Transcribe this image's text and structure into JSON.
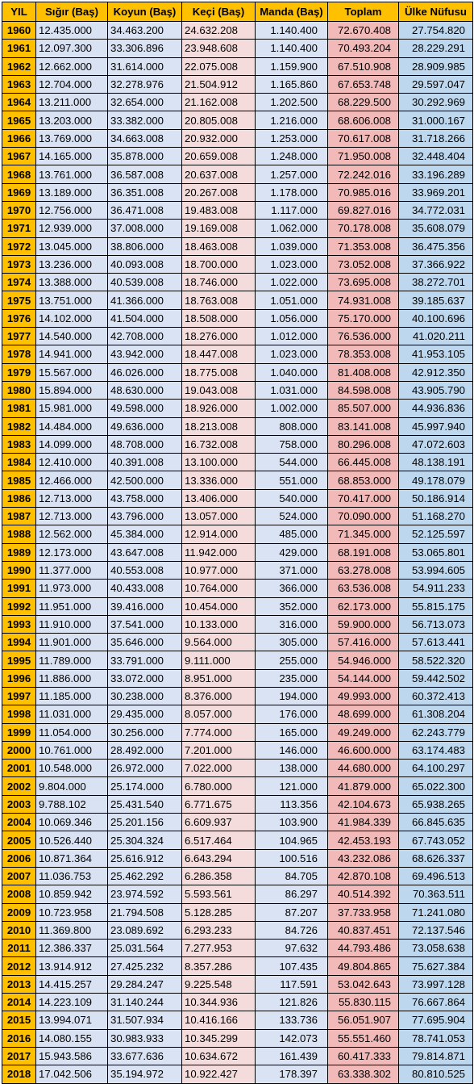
{
  "headers": [
    "YIL",
    "Sığır (Baş)",
    "Koyun (Baş)",
    "Keçi (Baş)",
    "Manda (Baş)",
    "Toplam",
    "Ülke Nüfusu"
  ],
  "rows": [
    [
      "1960",
      "12.435.000",
      "34.463.200",
      "24.632.208",
      "1.140.400",
      "72.670.408",
      "27.754.820"
    ],
    [
      "1961",
      "12.097.300",
      "33.306.896",
      "23.948.608",
      "1.140.400",
      "70.493.204",
      "28.229.291"
    ],
    [
      "1962",
      "12.662.000",
      "31.614.000",
      "22.075.008",
      "1.159.900",
      "67.510.908",
      "28.909.985"
    ],
    [
      "1963",
      "12.704.000",
      "32.278.976",
      "21.504.912",
      "1.165.860",
      "67.653.748",
      "29.597.047"
    ],
    [
      "1964",
      "13.211.000",
      "32.654.000",
      "21.162.008",
      "1.202.500",
      "68.229.500",
      "30.292.969"
    ],
    [
      "1965",
      "13.203.000",
      "33.382.000",
      "20.805.008",
      "1.216.000",
      "68.606.008",
      "31.000.167"
    ],
    [
      "1966",
      "13.769.000",
      "34.663.008",
      "20.932.000",
      "1.253.000",
      "70.617.008",
      "31.718.266"
    ],
    [
      "1967",
      "14.165.000",
      "35.878.000",
      "20.659.008",
      "1.248.000",
      "71.950.008",
      "32.448.404"
    ],
    [
      "1968",
      "13.761.000",
      "36.587.008",
      "20.637.008",
      "1.257.000",
      "72.242.016",
      "33.196.289"
    ],
    [
      "1969",
      "13.189.000",
      "36.351.008",
      "20.267.008",
      "1.178.000",
      "70.985.016",
      "33.969.201"
    ],
    [
      "1970",
      "12.756.000",
      "36.471.008",
      "19.483.008",
      "1.117.000",
      "69.827.016",
      "34.772.031"
    ],
    [
      "1971",
      "12.939.000",
      "37.008.000",
      "19.169.008",
      "1.062.000",
      "70.178.008",
      "35.608.079"
    ],
    [
      "1972",
      "13.045.000",
      "38.806.000",
      "18.463.008",
      "1.039.000",
      "71.353.008",
      "36.475.356"
    ],
    [
      "1973",
      "13.236.000",
      "40.093.008",
      "18.700.000",
      "1.023.000",
      "73.052.008",
      "37.366.922"
    ],
    [
      "1974",
      "13.388.000",
      "40.539.008",
      "18.746.000",
      "1.022.000",
      "73.695.008",
      "38.272.701"
    ],
    [
      "1975",
      "13.751.000",
      "41.366.000",
      "18.763.008",
      "1.051.000",
      "74.931.008",
      "39.185.637"
    ],
    [
      "1976",
      "14.102.000",
      "41.504.000",
      "18.508.000",
      "1.056.000",
      "75.170.000",
      "40.100.696"
    ],
    [
      "1977",
      "14.540.000",
      "42.708.000",
      "18.276.000",
      "1.012.000",
      "76.536.000",
      "41.020.211"
    ],
    [
      "1978",
      "14.941.000",
      "43.942.000",
      "18.447.008",
      "1.023.000",
      "78.353.008",
      "41.953.105"
    ],
    [
      "1979",
      "15.567.000",
      "46.026.000",
      "18.775.008",
      "1.040.000",
      "81.408.008",
      "42.912.350"
    ],
    [
      "1980",
      "15.894.000",
      "48.630.000",
      "19.043.008",
      "1.031.000",
      "84.598.008",
      "43.905.790"
    ],
    [
      "1981",
      "15.981.000",
      "49.598.000",
      "18.926.000",
      "1.002.000",
      "85.507.000",
      "44.936.836"
    ],
    [
      "1982",
      "14.484.000",
      "49.636.000",
      "18.213.008",
      "808.000",
      "83.141.008",
      "45.997.940"
    ],
    [
      "1983",
      "14.099.000",
      "48.708.000",
      "16.732.008",
      "758.000",
      "80.296.008",
      "47.072.603"
    ],
    [
      "1984",
      "12.410.000",
      "40.391.008",
      "13.100.000",
      "544.000",
      "66.445.008",
      "48.138.191"
    ],
    [
      "1985",
      "12.466.000",
      "42.500.000",
      "13.336.000",
      "551.000",
      "68.853.000",
      "49.178.079"
    ],
    [
      "1986",
      "12.713.000",
      "43.758.000",
      "13.406.000",
      "540.000",
      "70.417.000",
      "50.186.914"
    ],
    [
      "1987",
      "12.713.000",
      "43.796.000",
      "13.057.000",
      "524.000",
      "70.090.000",
      "51.168.270"
    ],
    [
      "1988",
      "12.562.000",
      "45.384.000",
      "12.914.000",
      "485.000",
      "71.345.000",
      "52.125.597"
    ],
    [
      "1989",
      "12.173.000",
      "43.647.008",
      "11.942.000",
      "429.000",
      "68.191.008",
      "53.065.801"
    ],
    [
      "1990",
      "11.377.000",
      "40.553.008",
      "10.977.000",
      "371.000",
      "63.278.008",
      "53.994.605"
    ],
    [
      "1991",
      "11.973.000",
      "40.433.008",
      "10.764.000",
      "366.000",
      "63.536.008",
      "54.911.233"
    ],
    [
      "1992",
      "11.951.000",
      "39.416.000",
      "10.454.000",
      "352.000",
      "62.173.000",
      "55.815.175"
    ],
    [
      "1993",
      "11.910.000",
      "37.541.000",
      "10.133.000",
      "316.000",
      "59.900.000",
      "56.713.073"
    ],
    [
      "1994",
      "11.901.000",
      "35.646.000",
      "9.564.000",
      "305.000",
      "57.416.000",
      "57.613.441"
    ],
    [
      "1995",
      "11.789.000",
      "33.791.000",
      "9.111.000",
      "255.000",
      "54.946.000",
      "58.522.320"
    ],
    [
      "1996",
      "11.886.000",
      "33.072.000",
      "8.951.000",
      "235.000",
      "54.144.000",
      "59.442.502"
    ],
    [
      "1997",
      "11.185.000",
      "30.238.000",
      "8.376.000",
      "194.000",
      "49.993.000",
      "60.372.413"
    ],
    [
      "1998",
      "11.031.000",
      "29.435.000",
      "8.057.000",
      "176.000",
      "48.699.000",
      "61.308.204"
    ],
    [
      "1999",
      "11.054.000",
      "30.256.000",
      "7.774.000",
      "165.000",
      "49.249.000",
      "62.243.779"
    ],
    [
      "2000",
      "10.761.000",
      "28.492.000",
      "7.201.000",
      "146.000",
      "46.600.000",
      "63.174.483"
    ],
    [
      "2001",
      "10.548.000",
      "26.972.000",
      "7.022.000",
      "138.000",
      "44.680.000",
      "64.100.297"
    ],
    [
      "2002",
      "9.804.000",
      "25.174.000",
      "6.780.000",
      "121.000",
      "41.879.000",
      "65.022.300"
    ],
    [
      "2003",
      "9.788.102",
      "25.431.540",
      "6.771.675",
      "113.356",
      "42.104.673",
      "65.938.265"
    ],
    [
      "2004",
      "10.069.346",
      "25.201.156",
      "6.609.937",
      "103.900",
      "41.984.339",
      "66.845.635"
    ],
    [
      "2005",
      "10.526.440",
      "25.304.324",
      "6.517.464",
      "104.965",
      "42.453.193",
      "67.743.052"
    ],
    [
      "2006",
      "10.871.364",
      "25.616.912",
      "6.643.294",
      "100.516",
      "43.232.086",
      "68.626.337"
    ],
    [
      "2007",
      "11.036.753",
      "25.462.292",
      "6.286.358",
      "84.705",
      "42.870.108",
      "69.496.513"
    ],
    [
      "2008",
      "10.859.942",
      "23.974.592",
      "5.593.561",
      "86.297",
      "40.514.392",
      "70.363.511"
    ],
    [
      "2009",
      "10.723.958",
      "21.794.508",
      "5.128.285",
      "87.207",
      "37.733.958",
      "71.241.080"
    ],
    [
      "2010",
      "11.369.800",
      "23.089.692",
      "6.293.233",
      "84.726",
      "40.837.451",
      "72.137.546"
    ],
    [
      "2011",
      "12.386.337",
      "25.031.564",
      "7.277.953",
      "97.632",
      "44.793.486",
      "73.058.638"
    ],
    [
      "2012",
      "13.914.912",
      "27.425.232",
      "8.357.286",
      "107.435",
      "49.804.865",
      "75.627.384"
    ],
    [
      "2013",
      "14.415.257",
      "29.284.247",
      "9.225.548",
      "117.591",
      "53.042.643",
      "73.997.128"
    ],
    [
      "2014",
      "14.223.109",
      "31.140.244",
      "10.344.936",
      "121.826",
      "55.830.115",
      "76.667.864"
    ],
    [
      "2015",
      "13.994.071",
      "31.507.934",
      "10.416.166",
      "133.736",
      "56.051.907",
      "77.695.904"
    ],
    [
      "2016",
      "14.080.155",
      "30.983.933",
      "10.345.299",
      "142.073",
      "55.551.460",
      "78.741.053"
    ],
    [
      "2017",
      "15.943.586",
      "33.677.636",
      "10.634.672",
      "161.439",
      "60.417.333",
      "79.814.871"
    ],
    [
      "2018",
      "17.042.506",
      "35.194.972",
      "10.922.427",
      "178.397",
      "63.338.302",
      "80.810.525"
    ]
  ]
}
